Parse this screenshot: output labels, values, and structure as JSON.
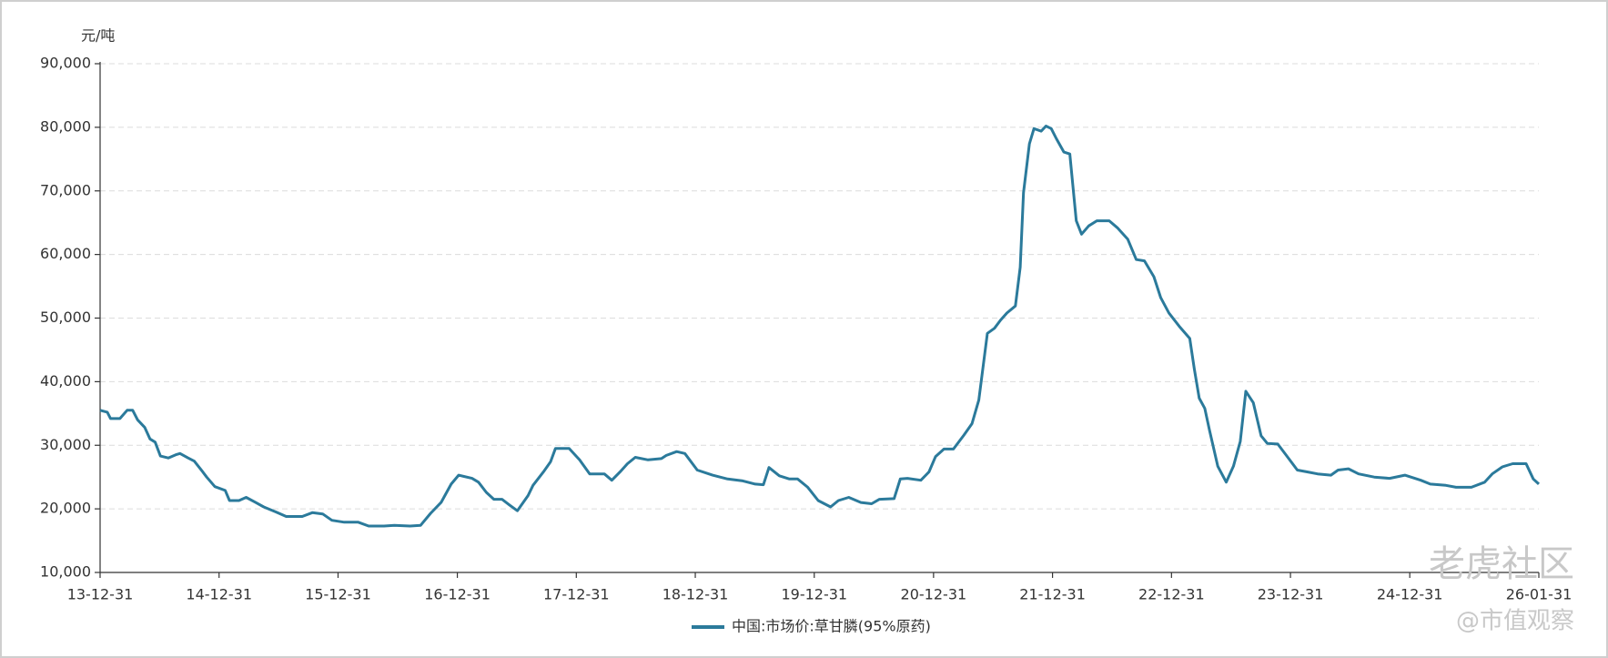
{
  "chart_data": {
    "type": "line",
    "unit_label": "元/吨",
    "x": [
      "13-12-31",
      "14-01-22",
      "14-02-01",
      "14-03-02",
      "14-03-24",
      "14-04-10",
      "14-04-25",
      "14-05-17",
      "14-06-02",
      "14-06-18",
      "14-07-04",
      "14-07-28",
      "14-08-20",
      "14-09-02",
      "14-09-27",
      "14-10-16",
      "14-11-08",
      "14-11-23",
      "14-12-18",
      "15-01-19",
      "15-02-01",
      "15-03-02",
      "15-03-24",
      "15-04-22",
      "15-05-17",
      "15-06-24",
      "15-07-25",
      "15-09-12",
      "15-10-13",
      "15-11-14",
      "15-12-12",
      "16-01-19",
      "16-03-02",
      "16-04-03",
      "16-05-20",
      "16-06-21",
      "16-08-08",
      "16-09-09",
      "16-10-10",
      "16-11-11",
      "16-12-12",
      "17-01-04",
      "17-02-14",
      "17-03-06",
      "17-03-30",
      "17-04-22",
      "17-05-17",
      "17-06-09",
      "17-07-03",
      "17-08-05",
      "17-08-20",
      "17-09-21",
      "17-10-13",
      "17-10-28",
      "17-12-09",
      "18-01-10",
      "18-02-10",
      "18-03-27",
      "18-04-19",
      "18-05-14",
      "18-06-06",
      "18-06-30",
      "18-08-08",
      "18-09-18",
      "18-10-03",
      "18-11-04",
      "18-11-29",
      "19-01-06",
      "19-02-22",
      "19-04-09",
      "19-05-26",
      "19-07-03",
      "19-07-28",
      "19-08-14",
      "19-09-15",
      "19-10-16",
      "19-11-10",
      "19-12-11",
      "20-01-12",
      "20-02-19",
      "20-03-14",
      "20-04-15",
      "20-05-22",
      "20-06-24",
      "20-07-18",
      "20-09-01",
      "20-09-20",
      "20-10-12",
      "20-11-22",
      "20-12-17",
      "21-01-06",
      "21-02-01",
      "21-03-02",
      "21-04-03",
      "21-04-28",
      "21-05-19",
      "21-06-14",
      "21-07-06",
      "21-07-25",
      "21-08-13",
      "21-09-08",
      "21-09-23",
      "21-10-03",
      "21-10-21",
      "21-11-04",
      "21-11-26",
      "21-12-11",
      "21-12-27",
      "22-01-12",
      "22-02-04",
      "22-02-22",
      "22-03-14",
      "22-03-30",
      "22-04-21",
      "22-05-16",
      "22-06-23",
      "22-07-18",
      "22-08-19",
      "22-09-14",
      "22-10-09",
      "22-11-07",
      "22-11-28",
      "22-12-23",
      "23-01-24",
      "23-02-25",
      "23-03-11",
      "23-03-26",
      "23-04-12",
      "23-04-27",
      "23-05-22",
      "23-06-17",
      "23-07-09",
      "23-07-30",
      "23-08-16",
      "23-09-08",
      "23-10-02",
      "23-10-21",
      "23-11-22",
      "23-12-20",
      "24-01-21",
      "24-02-22",
      "24-03-23",
      "24-05-03",
      "24-05-25",
      "24-06-26",
      "24-07-27",
      "24-09-13",
      "24-10-30",
      "24-12-16",
      "25-02-03",
      "25-03-04",
      "25-04-21",
      "25-05-22",
      "25-07-08",
      "25-08-18",
      "25-09-10",
      "25-10-11",
      "25-11-12",
      "25-12-23",
      "26-01-14",
      "26-01-31"
    ],
    "series": [
      {
        "name": "中国:市场价:草甘膦(95%原药)",
        "color": "#2b7a9b",
        "values": [
          35500,
          35200,
          34200,
          34200,
          35500,
          35500,
          34000,
          32800,
          31000,
          30500,
          28300,
          28000,
          28500,
          28700,
          28000,
          27500,
          26000,
          25000,
          23500,
          22900,
          21300,
          21300,
          21800,
          21000,
          20300,
          19500,
          18800,
          18800,
          19400,
          19200,
          18200,
          17900,
          17900,
          17300,
          17300,
          17400,
          17300,
          17400,
          19300,
          21000,
          23900,
          25300,
          24800,
          24200,
          22600,
          21500,
          21500,
          20600,
          19700,
          22100,
          23700,
          25800,
          27400,
          29500,
          29500,
          27700,
          25500,
          25500,
          24500,
          25800,
          27100,
          28100,
          27700,
          27900,
          28400,
          29000,
          28700,
          26100,
          25300,
          24700,
          24400,
          23900,
          23800,
          26500,
          25200,
          24700,
          24700,
          23400,
          21300,
          20300,
          21300,
          21800,
          21000,
          20800,
          21500,
          21600,
          24700,
          24800,
          24500,
          25800,
          28200,
          29400,
          29400,
          31600,
          33400,
          37100,
          47600,
          48400,
          49700,
          50800,
          51900,
          58000,
          69700,
          77400,
          79800,
          79400,
          80200,
          79800,
          78200,
          76100,
          75800,
          65300,
          63200,
          64500,
          65300,
          65300,
          64200,
          62400,
          59200,
          59000,
          56500,
          53200,
          50800,
          48700,
          46800,
          42000,
          37400,
          35800,
          32300,
          26700,
          24200,
          26700,
          30600,
          38500,
          36700,
          31500,
          30300,
          30200,
          28300,
          26100,
          25800,
          25500,
          25300,
          26100,
          26300,
          25500,
          25000,
          24800,
          25300,
          24500,
          23900,
          23700,
          23400,
          23400,
          24200,
          25500,
          26600,
          27100,
          27100,
          24700,
          23900
        ]
      }
    ],
    "xlim": [
      "13-12-31",
      "26-01-31"
    ],
    "xticks": [
      "13-12-31",
      "14-12-31",
      "15-12-31",
      "16-12-31",
      "17-12-31",
      "18-12-31",
      "19-12-31",
      "20-12-31",
      "21-12-31",
      "22-12-31",
      "23-12-31",
      "24-12-31",
      "26-01-31"
    ],
    "ylim": [
      10000,
      90000
    ],
    "yticks": [
      {
        "value": 10000,
        "label": "10,000"
      },
      {
        "value": 20000,
        "label": "20,000"
      },
      {
        "value": 30000,
        "label": "30,000"
      },
      {
        "value": 40000,
        "label": "40,000"
      },
      {
        "value": 50000,
        "label": "50,000"
      },
      {
        "value": 60000,
        "label": "60,000"
      },
      {
        "value": 70000,
        "label": "70,000"
      },
      {
        "value": 80000,
        "label": "80,000"
      },
      {
        "value": 90000,
        "label": "90,000"
      }
    ],
    "grid": true,
    "legend": "bottom",
    "watermarks": [
      "老虎社区",
      "@市值观察"
    ]
  }
}
